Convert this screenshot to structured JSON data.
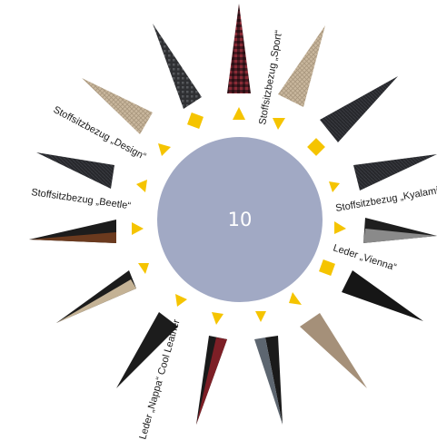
{
  "center": {
    "value": "10",
    "color": "#a1a9c4"
  },
  "accent_color": "#f5c400",
  "labels": {
    "sport": "Stoffsitzbezug „Sport“",
    "design": "Stoffsitzbezug „Design“",
    "beetle": "Stoffsitzbezug „Beetle“",
    "kyalami": "Stoffsitzbezug „Kyalami“",
    "vienna": "Leder „Vienna“",
    "nappa": "Leder „Nappa“ Cool Leather"
  },
  "rays": [
    {
      "name": "ray-sport",
      "fill": "#5c1c26",
      "pattern": "plaid-red"
    },
    {
      "name": "ray-beige-weave",
      "fill": "#c8b8a0",
      "pattern": "weave-beige"
    },
    {
      "name": "ray-black-weave",
      "fill": "#2b2b2e",
      "pattern": "weave-dark"
    },
    {
      "name": "ray-kyalami",
      "fill": "#2a2a30",
      "pattern": "weave-dark"
    },
    {
      "name": "ray-vienna-grey",
      "fill": "#1e1e1e",
      "second": "#8a8a8a"
    },
    {
      "name": "ray-black-leather",
      "fill": "#161616"
    },
    {
      "name": "ray-beige-leather",
      "fill": "#a59079"
    },
    {
      "name": "ray-grey-nappa",
      "fill": "#1a1a1a",
      "second": "#5d6670"
    },
    {
      "name": "ray-red-nappa",
      "fill": "#1a1a1a",
      "second": "#7d1f26"
    },
    {
      "name": "ray-black-cool",
      "fill": "#1c1c1c"
    },
    {
      "name": "ray-black-beige",
      "fill": "#1c1c1c",
      "second": "#c4b295"
    },
    {
      "name": "ray-beetle",
      "fill": "#1c1c1c",
      "second": "#6b3a1e"
    },
    {
      "name": "ray-dark-weave",
      "fill": "#2a2a2a",
      "pattern": "weave-dark"
    },
    {
      "name": "ray-design",
      "fill": "#cdbfae",
      "pattern": "weave-beige"
    },
    {
      "name": "ray-grey-check",
      "fill": "#3a3a3d",
      "pattern": "check-grey"
    }
  ]
}
